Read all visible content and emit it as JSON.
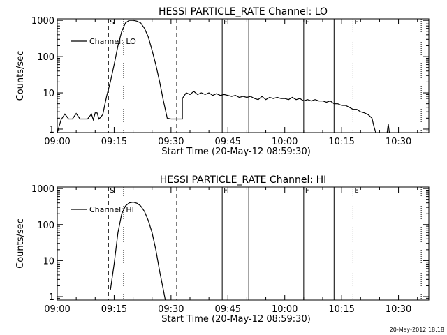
{
  "footer_timestamp": "20-May-2012 18:18",
  "chart_data": [
    {
      "type": "line",
      "title": "HESSI PARTICLE_RATE Channel: LO",
      "xlabel": "Start Time (20-May-12 08:59:30)",
      "ylabel": "Counts/sec",
      "y_scale": "log",
      "xlim": [
        "09:00",
        "10:38"
      ],
      "ylim": [
        0.8,
        1100
      ],
      "x_ticks": [
        "09:00",
        "09:15",
        "09:30",
        "09:45",
        "10:00",
        "10:15",
        "10:30"
      ],
      "y_ticks": [
        "1",
        "10",
        "100",
        "1000"
      ],
      "legend": {
        "position": "top-left",
        "entries": [
          "Channel: LO"
        ]
      },
      "series": [
        {
          "name": "Channel: LO",
          "points": [
            [
              "09:00",
              0.8
            ],
            [
              "09:01",
              1.8
            ],
            [
              "09:02",
              2.6
            ],
            [
              "09:03",
              1.9
            ],
            [
              "09:04",
              1.9
            ],
            [
              "09:05",
              2.7
            ],
            [
              "09:06",
              1.9
            ],
            [
              "09:08",
              1.9
            ],
            [
              "09:09",
              2.6
            ],
            [
              "09:09.5",
              1.8
            ],
            [
              "09:10",
              2.8
            ],
            [
              "09:10.5",
              2.8
            ],
            [
              "09:11",
              1.9
            ],
            [
              "09:12",
              2.5
            ],
            [
              "09:13",
              8
            ],
            [
              "09:14",
              20
            ],
            [
              "09:15",
              60
            ],
            [
              "09:16",
              200
            ],
            [
              "09:17",
              500
            ],
            [
              "09:18",
              850
            ],
            [
              "09:19",
              1000
            ],
            [
              "09:20",
              1000
            ],
            [
              "09:21",
              950
            ],
            [
              "09:22",
              850
            ],
            [
              "09:23",
              600
            ],
            [
              "09:24",
              350
            ],
            [
              "09:25",
              150
            ],
            [
              "09:26",
              60
            ],
            [
              "09:27",
              20
            ],
            [
              "09:28",
              6
            ],
            [
              "09:29",
              2
            ],
            [
              "09:30",
              1.9
            ],
            [
              "09:31",
              1.9
            ],
            [
              "09:33",
              1.9
            ],
            [
              "09:33",
              7
            ],
            [
              "09:34",
              10
            ],
            [
              "09:35",
              9
            ],
            [
              "09:36",
              11
            ],
            [
              "09:37",
              9
            ],
            [
              "09:38",
              10
            ],
            [
              "09:39",
              9
            ],
            [
              "09:40",
              10
            ],
            [
              "09:41",
              8.5
            ],
            [
              "09:42",
              9.5
            ],
            [
              "09:43",
              8.5
            ],
            [
              "09:44",
              9
            ],
            [
              "09:45",
              8.5
            ],
            [
              "09:46",
              8
            ],
            [
              "09:47",
              8.5
            ],
            [
              "09:48",
              7.5
            ],
            [
              "09:49",
              8
            ],
            [
              "09:50",
              7.5
            ],
            [
              "09:51",
              8
            ],
            [
              "09:52",
              7
            ],
            [
              "09:53",
              6.5
            ],
            [
              "09:54",
              8
            ],
            [
              "09:55",
              6.5
            ],
            [
              "09:56",
              7.5
            ],
            [
              "09:57",
              7
            ],
            [
              "09:58",
              7.5
            ],
            [
              "09:59",
              7
            ],
            [
              "10:00",
              7
            ],
            [
              "10:01",
              6.5
            ],
            [
              "10:02",
              7.5
            ],
            [
              "10:03",
              6.5
            ],
            [
              "10:04",
              7
            ],
            [
              "10:05",
              6
            ],
            [
              "10:06",
              6.5
            ],
            [
              "10:07",
              6
            ],
            [
              "10:08",
              6.5
            ],
            [
              "10:09",
              6
            ],
            [
              "10:10",
              6
            ],
            [
              "10:11",
              5.5
            ],
            [
              "10:12",
              6
            ],
            [
              "10:13",
              5
            ],
            [
              "10:14",
              5
            ],
            [
              "10:15",
              4.5
            ],
            [
              "10:16",
              4.5
            ],
            [
              "10:17",
              4
            ],
            [
              "10:18",
              3.5
            ],
            [
              "10:19",
              3.5
            ],
            [
              "10:20",
              3
            ],
            [
              "10:21",
              2.8
            ],
            [
              "10:22",
              2.5
            ],
            [
              "10:23",
              2
            ],
            [
              "10:23.5",
              1.2
            ],
            [
              "10:24",
              0.8
            ]
          ]
        },
        {
          "name": "",
          "points": [
            [
              "10:27",
              0.8
            ],
            [
              "10:27.3",
              1.4
            ],
            [
              "10:27.6",
              0.8
            ]
          ]
        }
      ],
      "markers": [
        {
          "time": "09:13.5",
          "style": "dashed",
          "label": "S"
        },
        {
          "time": "09:17.5",
          "style": "dotted",
          "label": ""
        },
        {
          "time": "09:31.5",
          "style": "dashed",
          "label": ""
        },
        {
          "time": "09:43.5",
          "style": "solid",
          "label": "F"
        },
        {
          "time": "09:50.5",
          "style": "solid",
          "label": ""
        },
        {
          "time": "10:05",
          "style": "solid",
          "label": "F"
        },
        {
          "time": "10:13",
          "style": "solid",
          "label": ""
        },
        {
          "time": "10:18",
          "style": "dotted",
          "label": "E"
        },
        {
          "time": "10:36",
          "style": "dotted",
          "label": ""
        }
      ]
    },
    {
      "type": "line",
      "title": "HESSI PARTICLE_RATE Channel: HI",
      "xlabel": "Start Time (20-May-12 08:59:30)",
      "ylabel": "Counts/sec",
      "y_scale": "log",
      "xlim": [
        "09:00",
        "10:38"
      ],
      "ylim": [
        0.8,
        1100
      ],
      "x_ticks": [
        "09:00",
        "09:15",
        "09:30",
        "09:45",
        "10:00",
        "10:15",
        "10:30"
      ],
      "y_ticks": [
        "1",
        "10",
        "100",
        "1000"
      ],
      "legend": {
        "position": "top-left",
        "entries": [
          "Channel: HI"
        ]
      },
      "series": [
        {
          "name": "Channel: HI",
          "points": [
            [
              "09:14",
              1.5
            ],
            [
              "09:15",
              8
            ],
            [
              "09:16",
              60
            ],
            [
              "09:17",
              200
            ],
            [
              "09:18",
              330
            ],
            [
              "09:19",
              400
            ],
            [
              "09:20",
              420
            ],
            [
              "09:21",
              390
            ],
            [
              "09:22",
              330
            ],
            [
              "09:23",
              230
            ],
            [
              "09:24",
              130
            ],
            [
              "09:25",
              60
            ],
            [
              "09:26",
              20
            ],
            [
              "09:27",
              5
            ],
            [
              "09:28",
              1.5
            ],
            [
              "09:28.5",
              0.8
            ]
          ]
        }
      ],
      "markers": [
        {
          "time": "09:13.5",
          "style": "dashed",
          "label": "S"
        },
        {
          "time": "09:17.5",
          "style": "dotted",
          "label": ""
        },
        {
          "time": "09:31.5",
          "style": "dashed",
          "label": ""
        },
        {
          "time": "09:43.5",
          "style": "solid",
          "label": "F"
        },
        {
          "time": "09:50.5",
          "style": "solid",
          "label": ""
        },
        {
          "time": "10:05",
          "style": "solid",
          "label": "F"
        },
        {
          "time": "10:13",
          "style": "solid",
          "label": ""
        },
        {
          "time": "10:18",
          "style": "dotted",
          "label": "E"
        },
        {
          "time": "10:36",
          "style": "dotted",
          "label": ""
        }
      ]
    }
  ]
}
